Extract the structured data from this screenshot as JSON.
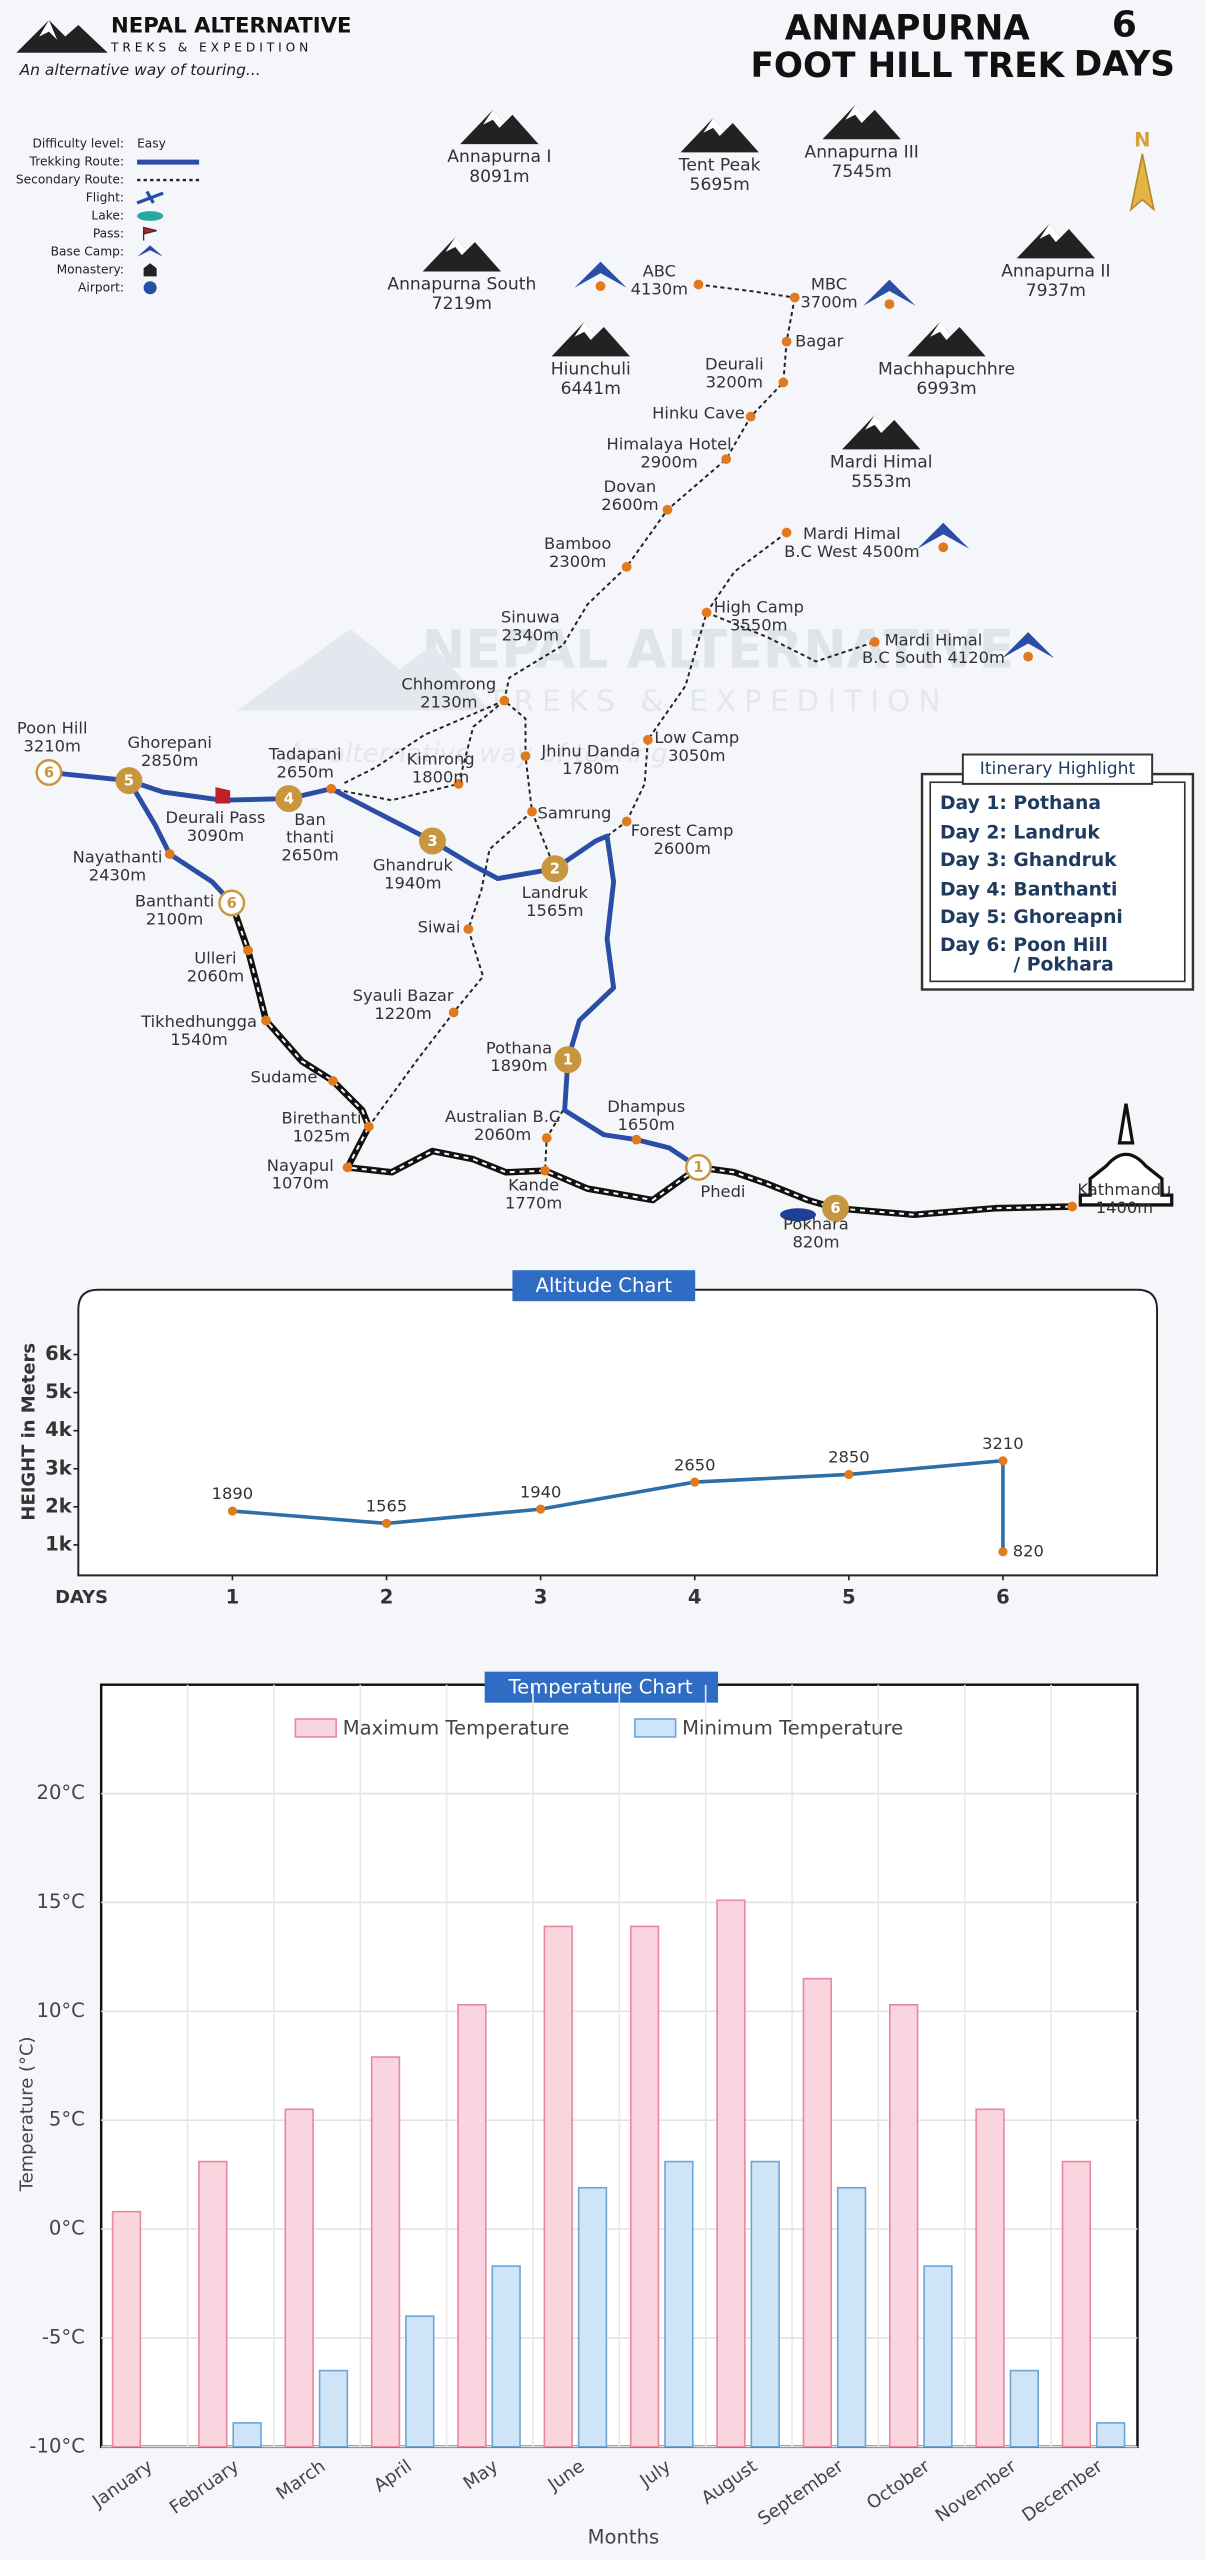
{
  "header": {
    "brand": "NEPAL ALTERNATIVE",
    "brand_sub": "TREKS & EXPEDITION",
    "tagline": "An alternative way of touring...",
    "title": [
      "ANNAPURNA",
      "FOOT HILL TREK"
    ],
    "days": "6",
    "days_word": "DAYS"
  },
  "legend": {
    "items": [
      "Difficulty level:",
      "Trekking Route:",
      "Secondary Route:",
      "Flight:",
      "Lake:",
      "Pass:",
      "Base Camp:",
      "Monastery:",
      "Airport:"
    ],
    "difficulty": "Easy"
  },
  "compass": "N",
  "watermark": {
    "name": "NEPAL ALTERNATIVE",
    "sub": "TREKS & EXPEDITION",
    "tagline": "An alternative way of touring..."
  },
  "peaks": [
    {
      "name": "Annapurna I",
      "alt": "8091m"
    },
    {
      "name": "Tent Peak",
      "alt": "5695m"
    },
    {
      "name": "Annapurna III",
      "alt": "7545m"
    },
    {
      "name": "Annapurna South",
      "alt": "7219m"
    },
    {
      "name": "Annapurna II",
      "alt": "7937m"
    },
    {
      "name": "Hiunchuli",
      "alt": "6441m"
    },
    {
      "name": "Machhapuchhre",
      "alt": "6993m"
    },
    {
      "name": "Mardi Himal",
      "alt": "5553m"
    }
  ],
  "places": [
    {
      "lines": [
        "ABC",
        "4130m"
      ]
    },
    {
      "lines": [
        "MBC",
        "3700m"
      ]
    },
    {
      "lines": [
        "Bagar"
      ]
    },
    {
      "lines": [
        "Deurali",
        "3200m"
      ]
    },
    {
      "lines": [
        "Hinku Cave"
      ]
    },
    {
      "lines": [
        "Himalaya Hotel",
        "2900m"
      ]
    },
    {
      "lines": [
        "Dovan",
        "2600m"
      ]
    },
    {
      "lines": [
        "Bamboo",
        "2300m"
      ]
    },
    {
      "lines": [
        "Sinuwa",
        "2340m"
      ]
    },
    {
      "lines": [
        "Chhomrong",
        "2130m"
      ]
    },
    {
      "lines": [
        "Jhinu Danda",
        "1780m"
      ]
    },
    {
      "lines": [
        "Kimrong",
        "1800m"
      ]
    },
    {
      "lines": [
        "Tadapani",
        "2650m"
      ]
    },
    {
      "lines": [
        "Samrung"
      ]
    },
    {
      "lines": [
        "Low Camp",
        "3050m"
      ]
    },
    {
      "lines": [
        "Forest Camp",
        "2600m"
      ]
    },
    {
      "lines": [
        "High Camp",
        "3550m"
      ]
    },
    {
      "lines": [
        "Mardi Himal",
        "B.C West 4500m"
      ]
    },
    {
      "lines": [
        "Mardi Himal",
        "B.C South 4120m"
      ]
    },
    {
      "lines": [
        "Poon Hill",
        "3210m"
      ]
    },
    {
      "lines": [
        "Ghorepani",
        "2850m"
      ]
    },
    {
      "lines": [
        "Deurali Pass",
        "3090m"
      ]
    },
    {
      "lines": [
        "Ban",
        "thanti",
        "2650m"
      ]
    },
    {
      "lines": [
        "Ghandruk",
        "1940m"
      ]
    },
    {
      "lines": [
        "Landruk",
        "1565m"
      ]
    },
    {
      "lines": [
        "Nayathanti",
        "2430m"
      ]
    },
    {
      "lines": [
        "Banthanti",
        "2100m"
      ]
    },
    {
      "lines": [
        "Ulleri",
        "2060m"
      ]
    },
    {
      "lines": [
        "Tikhedhungga",
        "1540m"
      ]
    },
    {
      "lines": [
        "Siwai"
      ]
    },
    {
      "lines": [
        "Syauli Bazar",
        "1220m"
      ]
    },
    {
      "lines": [
        "Pothana",
        "1890m"
      ]
    },
    {
      "lines": [
        "Sudame"
      ]
    },
    {
      "lines": [
        "Birethanti",
        "1025m"
      ]
    },
    {
      "lines": [
        "Australian B.C",
        "2060m"
      ]
    },
    {
      "lines": [
        "Dhampus",
        "1650m"
      ]
    },
    {
      "lines": [
        "Nayapul",
        "1070m"
      ]
    },
    {
      "lines": [
        "Kande",
        "1770m"
      ]
    },
    {
      "lines": [
        "Phedi"
      ]
    },
    {
      "lines": [
        "Pokhara",
        "820m"
      ]
    },
    {
      "lines": [
        "Kathmandu",
        "1400m"
      ]
    }
  ],
  "badges": [
    "6",
    "5",
    "4",
    "3",
    "2",
    "1",
    "6",
    "1",
    "6"
  ],
  "itinerary": {
    "title": "Itinerary Highlight",
    "rows": [
      {
        "day": "Day 1:",
        "place": [
          "Pothana"
        ]
      },
      {
        "day": "Day 2:",
        "place": [
          "Landruk"
        ]
      },
      {
        "day": "Day 3:",
        "place": [
          "Ghandruk"
        ]
      },
      {
        "day": "Day 4:",
        "place": [
          "Banthanti"
        ]
      },
      {
        "day": "Day 5:",
        "place": [
          "Ghoreapni"
        ]
      },
      {
        "day": "Day 6:",
        "place": [
          "Poon Hill",
          "/ Pokhara"
        ]
      }
    ]
  },
  "chart_data": [
    {
      "type": "line",
      "title": "Altitude Chart",
      "ylabel": "HEIGHT in Meters",
      "xlabel": "DAYS",
      "x": [
        1,
        2,
        3,
        4,
        5,
        6,
        6
      ],
      "values": [
        1890,
        1565,
        1940,
        2650,
        2850,
        3210,
        820
      ],
      "color": "#2b6ea8",
      "xlim": [
        0,
        7
      ],
      "xticks": [
        1,
        2,
        3,
        4,
        5,
        6
      ],
      "ylim": [
        200,
        7700
      ],
      "yticks": [
        {
          "value": 1000,
          "label": "1k"
        },
        {
          "value": 2000,
          "label": "2k"
        },
        {
          "value": 3000,
          "label": "3k"
        },
        {
          "value": 4000,
          "label": "4k"
        },
        {
          "value": 5000,
          "label": "5k"
        },
        {
          "value": 6000,
          "label": "6k"
        }
      ]
    },
    {
      "type": "bar",
      "title": "Temperature Chart",
      "ylabel": "Temperature (°C)",
      "xlabel": "Months",
      "categories": [
        "January",
        "February",
        "March",
        "April",
        "May",
        "June",
        "July",
        "August",
        "September",
        "October",
        "November",
        "December"
      ],
      "series": [
        {
          "name": "Maximum Temperature",
          "color": "#fad4de",
          "edgecolor": "#e8899f",
          "values": [
            0.8,
            3.1,
            5.5,
            7.9,
            10.3,
            13.9,
            13.9,
            15.1,
            11.5,
            10.3,
            5.5,
            3.1
          ]
        },
        {
          "name": "Minimum Temperature",
          "color": "#d0e4f7",
          "edgecolor": "#6ea6d6",
          "values": [
            -10,
            -8.9,
            -6.5,
            -4,
            -1.7,
            1.9,
            3.1,
            3.1,
            1.9,
            -1.7,
            -6.5,
            -8.9
          ]
        }
      ],
      "ylim": [
        -10,
        25
      ],
      "yticks": [
        {
          "value": -10,
          "label": "-10°C"
        },
        {
          "value": -5,
          "label": "-5°C"
        },
        {
          "value": 0,
          "label": "0°C"
        },
        {
          "value": 5,
          "label": "5°C"
        },
        {
          "value": 10,
          "label": "10°C"
        },
        {
          "value": 15,
          "label": "15°C"
        },
        {
          "value": 20,
          "label": "20°C"
        }
      ],
      "grid": true
    }
  ]
}
